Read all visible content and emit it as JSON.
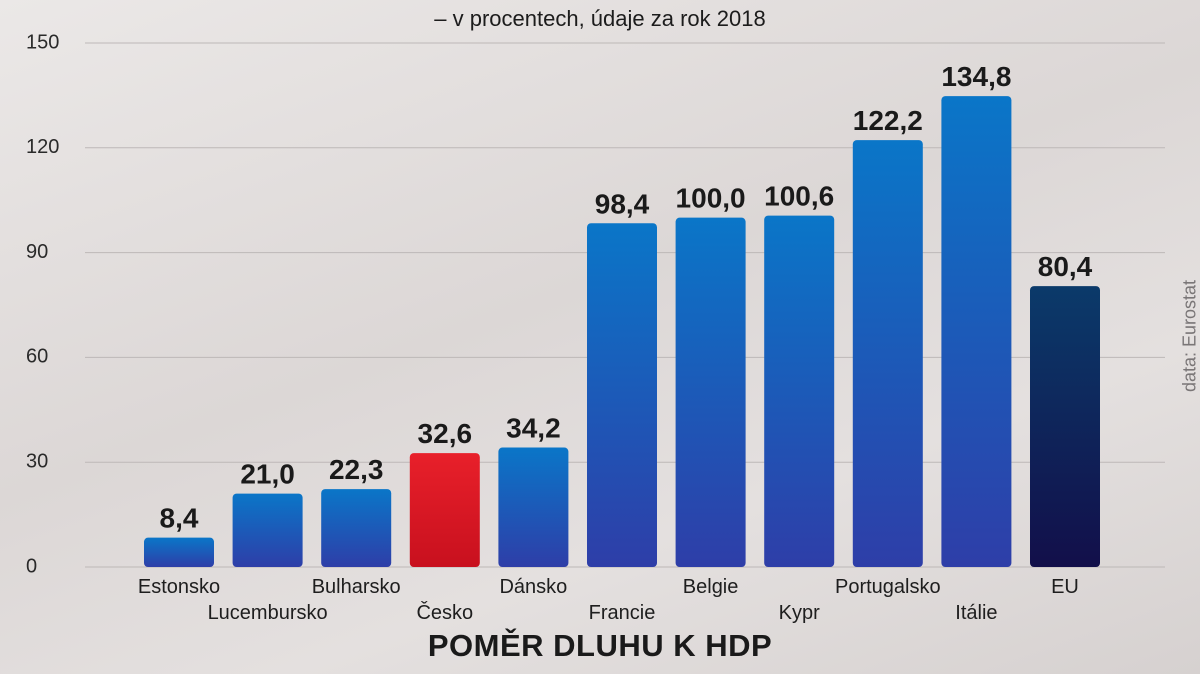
{
  "chart_data": {
    "type": "bar",
    "title": "POMĚR DLUHU K HDP",
    "subtitle": "– v procentech, údaje za rok 2018",
    "source": "data: Eurostat",
    "categories": [
      "Estonsko",
      "Lucembursko",
      "Bulharsko",
      "Česko",
      "Dánsko",
      "Francie",
      "Belgie",
      "Kypr",
      "Portugalsko",
      "Itálie",
      "EU"
    ],
    "values": [
      8.4,
      21.0,
      22.3,
      32.6,
      34.2,
      98.4,
      100.0,
      100.6,
      122.2,
      134.8,
      80.4
    ],
    "value_labels": [
      "8,4",
      "21,0",
      "22,3",
      "32,6",
      "34,2",
      "98,4",
      "100,0",
      "100,6",
      "122,2",
      "134,8",
      "80,4"
    ],
    "ylim": [
      0,
      150
    ],
    "yticks": [
      0,
      30,
      60,
      90,
      120,
      150
    ],
    "grid": true,
    "colors": {
      "default_top": "#0a76c8",
      "default_bottom": "#2e3ea8",
      "highlight_top": "#e8202a",
      "highlight_bottom": "#c8101e",
      "eu_top": "#0b3a6a",
      "eu_bottom": "#120f4a"
    },
    "highlight_category": "Česko",
    "aggregate_category": "EU"
  }
}
